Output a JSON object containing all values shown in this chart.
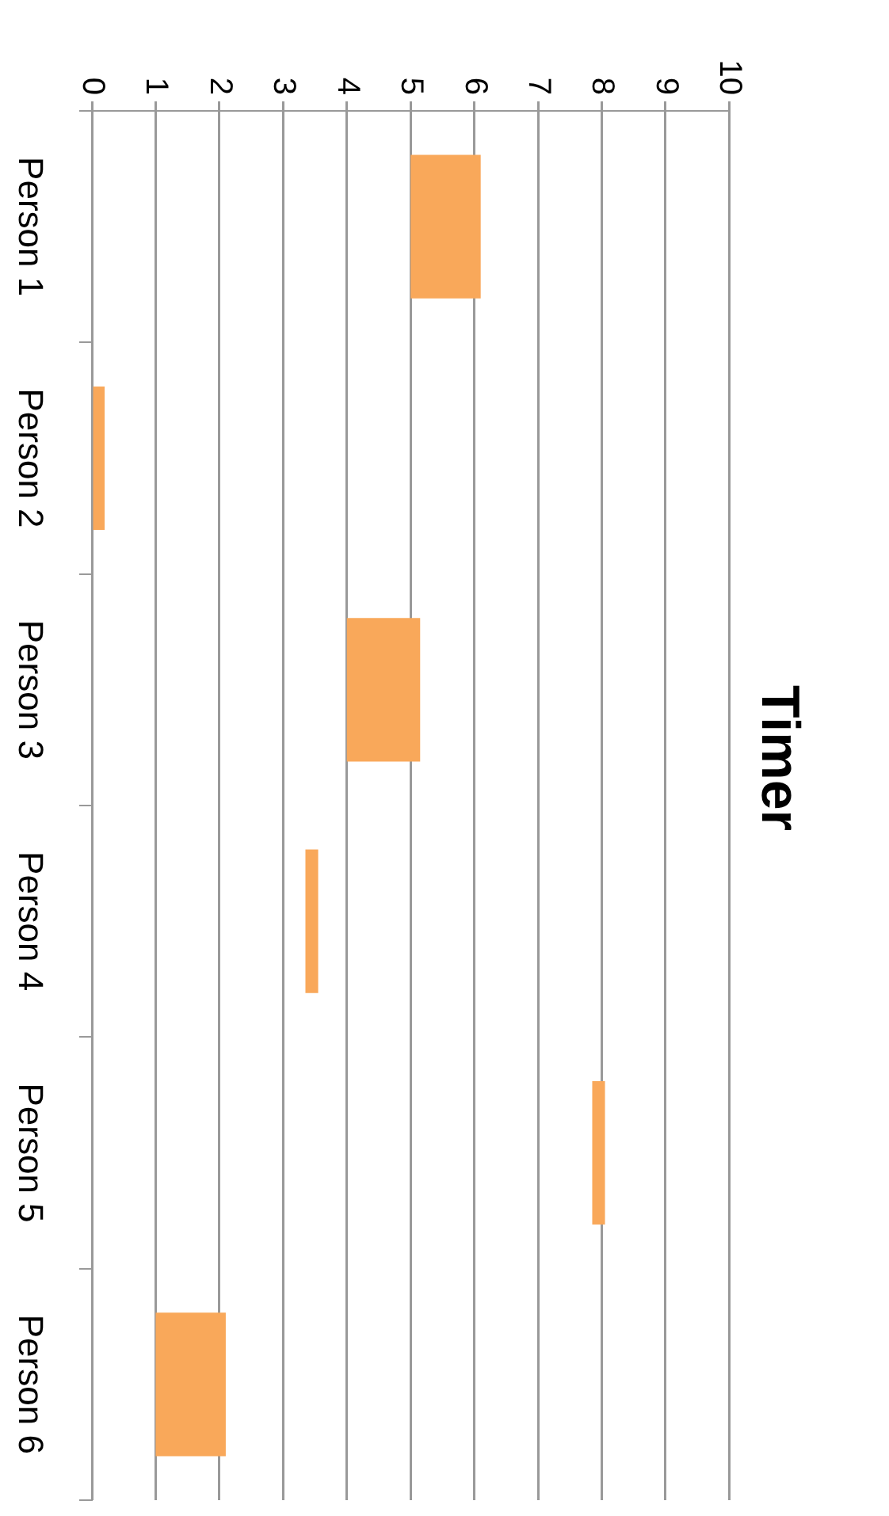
{
  "chart_data": {
    "type": "bar",
    "title": "Timer",
    "orientation": "horizontal",
    "categories": [
      "Person 1",
      "Person 2",
      "Person 3",
      "Person 4",
      "Person 5",
      "Person 6"
    ],
    "base": [
      5,
      0,
      4,
      3.35,
      7.85,
      1
    ],
    "values": [
      1.1,
      0.2,
      1.15,
      0.2,
      0.2,
      1.1
    ],
    "color": "#f9a85a",
    "xlim": [
      0,
      10
    ],
    "xticks": [
      0,
      1,
      2,
      3,
      4,
      5,
      6,
      7,
      8,
      9,
      10
    ],
    "grid": "x"
  }
}
